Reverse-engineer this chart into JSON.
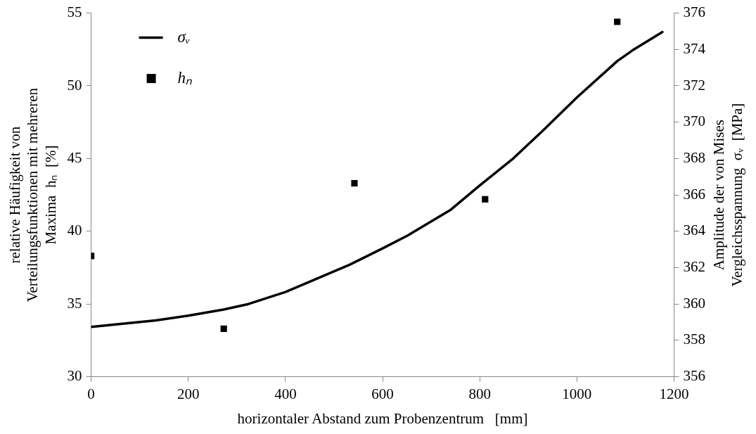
{
  "chart_data": {
    "type": "line",
    "xlabel": "horizontaler Abstand zum Probenzentrum   [mm]",
    "ylabel": "relative Häufigkeit von\nVerteilungsfunktionen mit mehreren\nMaxima  hₙ  [%]",
    "y2label": "Amplitude der von Mises\nVergleichsspannung  σᵥ  [MPa]",
    "series": [
      {
        "name": "σᵥ",
        "axis": "y2",
        "color": "#000000",
        "x": [
          0,
          133,
          200,
          273,
          324,
          400,
          532,
          600,
          651,
          739,
          800,
          867,
          931,
          1000,
          1083,
          1115,
          1176
        ],
        "values": [
          358.74,
          359.1,
          359.36,
          359.7,
          360.0,
          360.66,
          362.16,
          363.06,
          363.76,
          365.16,
          366.52,
          367.96,
          369.56,
          371.36,
          373.36,
          373.96,
          374.96
        ]
      },
      {
        "name": "hₙ",
        "type": "scatter",
        "marker": "square",
        "color": "#000000",
        "x": [
          0,
          273,
          542,
          811,
          1083
        ],
        "values": [
          38.3,
          33.3,
          43.3,
          42.2,
          54.4
        ]
      }
    ],
    "xlim": [
      0,
      1200
    ],
    "xticks": [
      0,
      200,
      400,
      600,
      800,
      1000,
      1200
    ],
    "ylim": [
      30,
      55
    ],
    "yticks": [
      30,
      35,
      40,
      45,
      50,
      55
    ],
    "y2lim": [
      356,
      376
    ],
    "y2ticks": [
      356,
      358,
      360,
      362,
      364,
      366,
      368,
      370,
      372,
      374,
      376
    ],
    "grid": false,
    "legend": "top left"
  }
}
